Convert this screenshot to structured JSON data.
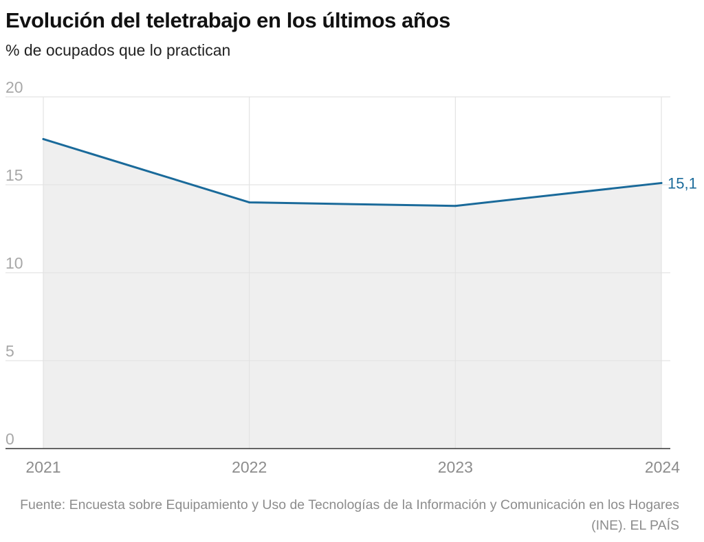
{
  "header": {
    "title": "Evolución del teletrabajo en los últimos años",
    "subtitle": "% de ocupados que lo practican"
  },
  "footer": {
    "source": "Fuente: Encuesta sobre Equipamiento y Uso de Tecnologías de la Información y Comunicación en los Hogares (INE). EL PAÍS"
  },
  "colors": {
    "line": "#1a6a9a",
    "area": "#efefef",
    "grid": "#e3e3e3",
    "baseline": "#333333"
  },
  "chart_data": {
    "type": "area",
    "x": [
      "2021",
      "2022",
      "2023",
      "2024"
    ],
    "series": [
      {
        "values": [
          17.6,
          14.0,
          13.8,
          15.1
        ]
      }
    ],
    "end_label": "15,1",
    "ylim": [
      0,
      20
    ],
    "yticks": [
      0,
      5,
      10,
      15,
      20
    ],
    "grid": true,
    "legend": "none"
  }
}
